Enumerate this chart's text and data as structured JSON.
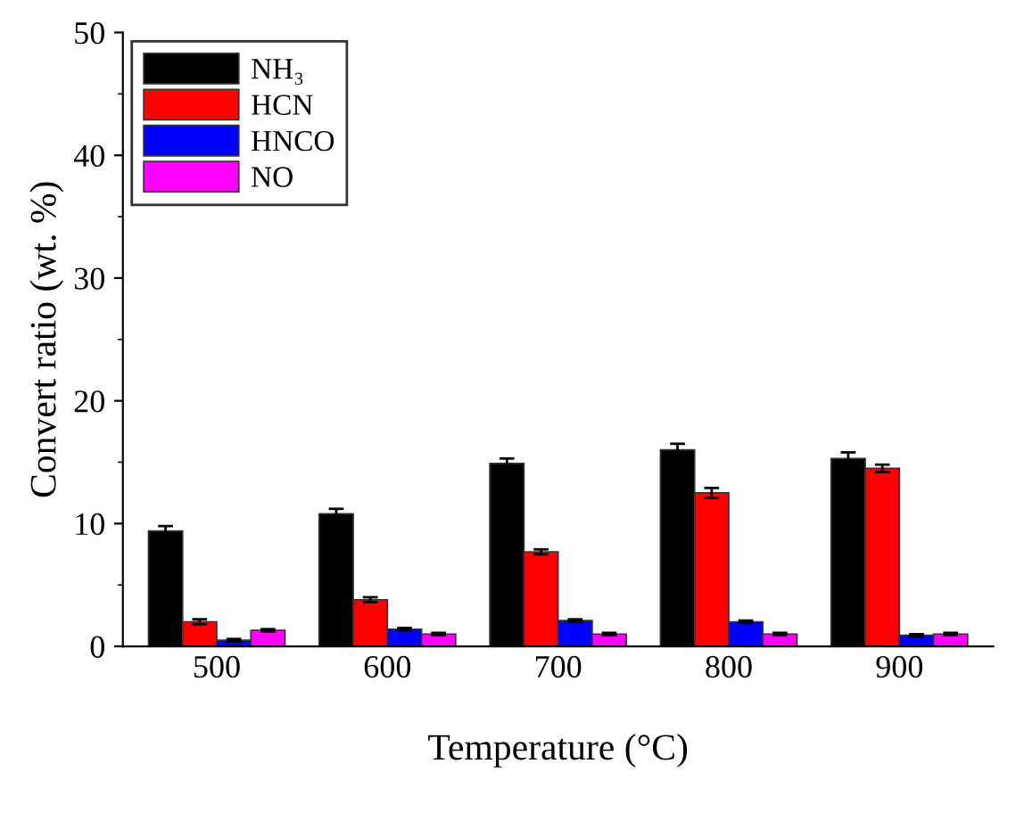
{
  "chart_data": {
    "type": "bar",
    "xlabel": "Temperature (°C)",
    "ylabel": "Convert ratio (wt. %)",
    "categories": [
      "500",
      "600",
      "700",
      "800",
      "900"
    ],
    "series": [
      {
        "name": "NH₃",
        "color": "#000000",
        "values": [
          9.4,
          10.8,
          14.9,
          16.0,
          15.3
        ],
        "errors": [
          0.4,
          0.4,
          0.4,
          0.5,
          0.5
        ]
      },
      {
        "name": "HCN",
        "color": "#ff0000",
        "values": [
          2.0,
          3.8,
          7.7,
          12.5,
          14.5
        ],
        "errors": [
          0.2,
          0.2,
          0.2,
          0.4,
          0.3
        ]
      },
      {
        "name": "HNCO",
        "color": "#0000ff",
        "values": [
          0.5,
          1.4,
          2.1,
          2.0,
          0.9
        ],
        "errors": [
          0.1,
          0.1,
          0.1,
          0.1,
          0.1
        ]
      },
      {
        "name": "NO",
        "color": "#ff00ff",
        "values": [
          1.3,
          1.0,
          1.0,
          1.0,
          1.0
        ],
        "errors": [
          0.1,
          0.1,
          0.1,
          0.1,
          0.1
        ]
      }
    ],
    "ylim": [
      0,
      50
    ],
    "yticks": [
      0,
      10,
      20,
      30,
      40,
      50
    ],
    "grid": false,
    "legend": "top left"
  }
}
